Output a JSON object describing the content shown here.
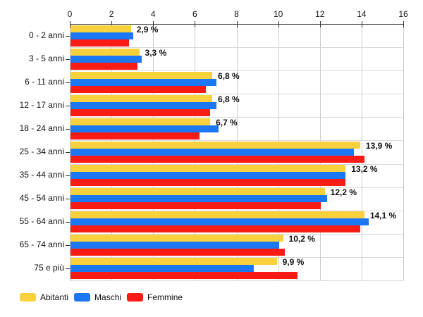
{
  "chart_data": {
    "type": "bar",
    "orientation": "horizontal",
    "title": "",
    "categories": [
      "0 - 2 anni",
      "3 - 5 anni",
      "6 - 11 anni",
      "12 - 17 anni",
      "18 - 24 anni",
      "25 - 34 anni",
      "35 - 44 anni",
      "45 - 54 anni",
      "55 - 64 anni",
      "65 - 74 anni",
      "75 e più"
    ],
    "series": [
      {
        "name": "Abitanti",
        "color": "#F8D13D",
        "values": [
          2.9,
          3.3,
          6.8,
          6.8,
          6.7,
          13.9,
          13.2,
          12.2,
          14.1,
          10.2,
          9.9
        ]
      },
      {
        "name": "Maschi",
        "color": "#1C77F2",
        "values": [
          3.0,
          3.4,
          7.0,
          7.0,
          7.1,
          13.6,
          13.2,
          12.3,
          14.3,
          10.0,
          8.8
        ]
      },
      {
        "name": "Femmine",
        "color": "#FB1B15",
        "values": [
          2.8,
          3.2,
          6.5,
          6.7,
          6.2,
          14.1,
          13.2,
          12.0,
          13.9,
          10.3,
          10.9
        ]
      }
    ],
    "value_labels": [
      "2,9 %",
      "3,3 %",
      "6,8 %",
      "6,8 %",
      "6,7 %",
      "13,9 %",
      "13,2 %",
      "12,2 %",
      "14,1 %",
      "10,2 %",
      "9,9 %"
    ],
    "axis": {
      "position": "top",
      "min": 0,
      "max": 16,
      "step": 2,
      "ticks": [
        "0",
        "2",
        "4",
        "6",
        "8",
        "10",
        "12",
        "14",
        "16"
      ]
    },
    "grid": true,
    "legend": {
      "position": "bottom"
    }
  }
}
